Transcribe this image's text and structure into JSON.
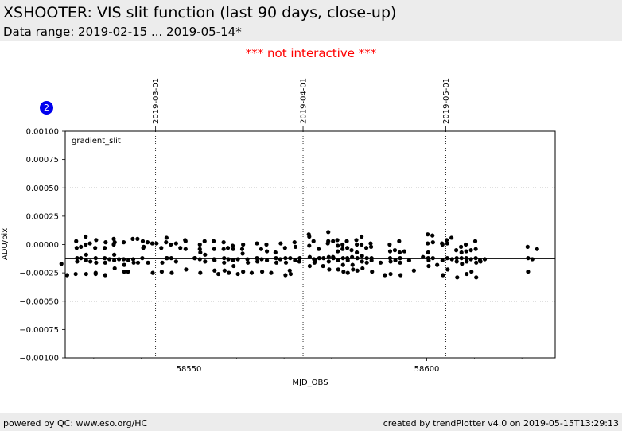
{
  "header": {
    "title": "XSHOOTER: VIS slit function (last 90 days, close-up)",
    "subtitle": "Data range: 2019-02-15 ... 2019-05-14*"
  },
  "notice": "*** not interactive ***",
  "badge": "2",
  "footer": {
    "left": "powered by QC: www.eso.org/HC",
    "right": "created by trendPlotter v4.0 on 2019-05-15T13:29:13"
  },
  "colors": {
    "header_bg": "#ececec",
    "notice": "#ff0000",
    "badge": "#0000ee",
    "points": "#000000"
  },
  "chart_data": {
    "type": "scatter",
    "xlabel": "MJD_OBS",
    "ylabel": "ADU/pix",
    "panel_label": "gradient_slit",
    "xlim": [
      58524,
      58627
    ],
    "ylim": [
      -0.001,
      0.001
    ],
    "x_ticks": [
      58550,
      58600
    ],
    "x_tick_labels": [
      "58550",
      "58600"
    ],
    "y_ticks": [
      -0.001,
      -0.00075,
      -0.0005,
      -0.00025,
      0,
      0.00025,
      0.0005,
      0.00075,
      0.001
    ],
    "y_tick_labels": [
      "−0.00100",
      "−0.00075",
      "−0.00050",
      "−0.00025",
      "0.00000",
      "0.00025",
      "0.00050",
      "0.00075",
      "0.00100"
    ],
    "reference_line": -0.000125,
    "dotted_hlines": [
      0.0005,
      -0.0005
    ],
    "month_markers": [
      {
        "label": "2019-03-01",
        "mjd": 58543
      },
      {
        "label": "2019-04-01",
        "mjd": 58574
      },
      {
        "label": "2019-05-01",
        "mjd": 58604
      }
    ],
    "points": [
      [
        58523.2,
        -0.00017
      ],
      [
        58524.4,
        -0.00027
      ],
      [
        58526.2,
        -0.00026
      ],
      [
        58526.3,
        3e-05
      ],
      [
        58526.4,
        -3e-05
      ],
      [
        58526.5,
        -0.00012
      ],
      [
        58526.5,
        -0.00015
      ],
      [
        58527.3,
        -2e-05
      ],
      [
        58527.3,
        -0.00012
      ],
      [
        58528.3,
        7e-05
      ],
      [
        58528.3,
        0.0
      ],
      [
        58528.4,
        -9e-05
      ],
      [
        58528.4,
        -0.00014
      ],
      [
        58528.4,
        -0.00026
      ],
      [
        58529.2,
        1e-05
      ],
      [
        58529.3,
        -0.00015
      ],
      [
        58530.3,
        -3e-05
      ],
      [
        58530.4,
        -0.00012
      ],
      [
        58530.4,
        -0.00025
      ],
      [
        58530.4,
        -0.00026
      ],
      [
        58530.5,
        4e-05
      ],
      [
        58530.5,
        -0.00016
      ],
      [
        58532.3,
        -3e-05
      ],
      [
        58532.3,
        -0.00012
      ],
      [
        58532.4,
        -0.00016
      ],
      [
        58532.4,
        -0.00027
      ],
      [
        58532.5,
        2e-05
      ],
      [
        58533.3,
        -0.00013
      ],
      [
        58534.2,
        5e-05
      ],
      [
        58534.2,
        0.0
      ],
      [
        58534.3,
        -9e-05
      ],
      [
        58534.3,
        -0.00014
      ],
      [
        58534.4,
        -0.00021
      ],
      [
        58534.4,
        2e-05
      ],
      [
        58535.3,
        -0.00013
      ],
      [
        58536.3,
        2e-05
      ],
      [
        58536.3,
        -0.00013
      ],
      [
        58536.4,
        -0.00024
      ],
      [
        58536.4,
        -0.00018
      ],
      [
        58537.2,
        -0.00024
      ],
      [
        58537.3,
        -0.00014
      ],
      [
        58538.2,
        5e-05
      ],
      [
        58538.3,
        -0.00013
      ],
      [
        58538.4,
        -0.00016
      ],
      [
        58539.2,
        5e-05
      ],
      [
        58539.3,
        -0.00016
      ],
      [
        58540.2,
        -0.00012
      ],
      [
        58540.3,
        3e-05
      ],
      [
        58540.4,
        -3e-05
      ],
      [
        58540.5,
        -2e-05
      ],
      [
        58541.3,
        2e-05
      ],
      [
        58541.4,
        -0.00016
      ],
      [
        58542.3,
        1e-05
      ],
      [
        58542.4,
        -0.00025
      ],
      [
        58543.2,
        1e-05
      ],
      [
        58544.2,
        -3e-05
      ],
      [
        58544.3,
        -0.00024
      ],
      [
        58544.4,
        -0.00016
      ],
      [
        58545.2,
        2e-05
      ],
      [
        58545.3,
        6e-05
      ],
      [
        58545.3,
        -0.00012
      ],
      [
        58545.4,
        -0.00012
      ],
      [
        58546.2,
        0.0
      ],
      [
        58546.3,
        -0.00012
      ],
      [
        58546.4,
        -0.00025
      ],
      [
        58547.3,
        -0.00015
      ],
      [
        58547.3,
        1e-05
      ],
      [
        58548.2,
        -3e-05
      ],
      [
        58549.2,
        4e-05
      ],
      [
        58549.3,
        3e-05
      ],
      [
        58549.3,
        -4e-05
      ],
      [
        58549.4,
        -0.00022
      ],
      [
        58551.2,
        -0.00012
      ],
      [
        58551.3,
        -0.00012
      ],
      [
        58552.3,
        0.0
      ],
      [
        58552.3,
        -4e-05
      ],
      [
        58552.4,
        -7e-05
      ],
      [
        58552.3,
        -0.00013
      ],
      [
        58552.4,
        -0.00025
      ],
      [
        58553.3,
        3e-05
      ],
      [
        58553.4,
        -9e-05
      ],
      [
        58553.4,
        -0.00015
      ],
      [
        58555.2,
        3e-05
      ],
      [
        58555.3,
        -4e-05
      ],
      [
        58555.3,
        -0.00013
      ],
      [
        58555.4,
        -0.00014
      ],
      [
        58555.4,
        -0.00023
      ],
      [
        58556.2,
        -0.00026
      ],
      [
        58557.3,
        2e-05
      ],
      [
        58557.3,
        -4e-05
      ],
      [
        58557.4,
        -0.00012
      ],
      [
        58557.4,
        -0.00016
      ],
      [
        58557.5,
        -0.00023
      ],
      [
        58558.2,
        -3e-05
      ],
      [
        58558.3,
        -0.00013
      ],
      [
        58558.4,
        -0.00025
      ],
      [
        58559.2,
        -1e-05
      ],
      [
        58559.3,
        -4e-05
      ],
      [
        58559.3,
        -0.00014
      ],
      [
        58559.4,
        -0.00019
      ],
      [
        58560.3,
        -0.00026
      ],
      [
        58560.3,
        -0.00013
      ],
      [
        58561.2,
        -4e-05
      ],
      [
        58561.3,
        -8e-05
      ],
      [
        58561.4,
        -0.00024
      ],
      [
        58561.4,
        0.0
      ],
      [
        58562.3,
        -0.00013
      ],
      [
        58562.4,
        -0.00016
      ],
      [
        58563.2,
        -0.00025
      ],
      [
        58564.3,
        1e-05
      ],
      [
        58564.3,
        -0.00012
      ],
      [
        58564.4,
        -0.00015
      ],
      [
        58565.2,
        -4e-05
      ],
      [
        58565.3,
        -0.00013
      ],
      [
        58565.4,
        -0.00024
      ],
      [
        58566.3,
        0.0
      ],
      [
        58566.4,
        -6e-05
      ],
      [
        58566.4,
        -0.00014
      ],
      [
        58567.3,
        -0.00025
      ],
      [
        58568.2,
        -7e-05
      ],
      [
        58568.3,
        -0.00012
      ],
      [
        58568.4,
        -0.00016
      ],
      [
        58569.2,
        -0.00013
      ],
      [
        58569.3,
        1e-05
      ],
      [
        58570.2,
        -3e-05
      ],
      [
        58570.3,
        -0.00012
      ],
      [
        58570.4,
        -0.00016
      ],
      [
        58570.3,
        -0.00027
      ],
      [
        58571.2,
        -0.00023
      ],
      [
        58571.3,
        -0.00012
      ],
      [
        58571.4,
        -0.00026
      ],
      [
        58572.2,
        2e-05
      ],
      [
        58572.3,
        -0.00014
      ],
      [
        58572.4,
        -2e-05
      ],
      [
        58573.2,
        -0.00015
      ],
      [
        58573.3,
        -0.00012
      ],
      [
        58575.2,
        9e-05
      ],
      [
        58575.3,
        7e-05
      ],
      [
        58575.3,
        -1e-05
      ],
      [
        58575.4,
        -0.00011
      ],
      [
        58575.4,
        -0.00019
      ],
      [
        58576.2,
        3e-05
      ],
      [
        58576.3,
        -0.00013
      ],
      [
        58576.4,
        -0.00016
      ],
      [
        58576.5,
        -0.00014
      ],
      [
        58577.3,
        -4e-05
      ],
      [
        58577.4,
        -0.00012
      ],
      [
        58578.2,
        -0.00019
      ],
      [
        58578.3,
        -0.00012
      ],
      [
        58579.2,
        1e-05
      ],
      [
        58579.3,
        0.00011
      ],
      [
        58579.3,
        3e-05
      ],
      [
        58579.4,
        -0.00011
      ],
      [
        58579.4,
        -0.00015
      ],
      [
        58579.5,
        -0.00022
      ],
      [
        58580.3,
        3e-05
      ],
      [
        58580.3,
        -0.00011
      ],
      [
        58580.4,
        -0.00012
      ],
      [
        58581.2,
        4e-05
      ],
      [
        58581.3,
        -1e-05
      ],
      [
        58581.3,
        -6e-05
      ],
      [
        58581.4,
        -0.00014
      ],
      [
        58581.4,
        -0.00022
      ],
      [
        58582.3,
        0.0
      ],
      [
        58582.3,
        -4e-05
      ],
      [
        58582.4,
        -0.00012
      ],
      [
        58582.4,
        -0.00018
      ],
      [
        58582.5,
        -0.00024
      ],
      [
        58583.2,
        3e-05
      ],
      [
        58583.3,
        -3e-05
      ],
      [
        58583.3,
        -0.00012
      ],
      [
        58583.4,
        -0.00014
      ],
      [
        58583.4,
        -0.00025
      ],
      [
        58584.2,
        -5e-05
      ],
      [
        58584.3,
        -0.00011
      ],
      [
        58584.4,
        -0.00018
      ],
      [
        58584.5,
        -0.00022
      ],
      [
        58585.2,
        4e-05
      ],
      [
        58585.3,
        0.0
      ],
      [
        58585.3,
        -7e-05
      ],
      [
        58585.4,
        -0.00012
      ],
      [
        58585.4,
        -0.00023
      ],
      [
        58586.3,
        7e-05
      ],
      [
        58586.3,
        0.0
      ],
      [
        58586.4,
        -0.0001
      ],
      [
        58586.4,
        -0.00015
      ],
      [
        58586.5,
        -0.00021
      ],
      [
        58587.3,
        -3e-05
      ],
      [
        58587.4,
        -0.00012
      ],
      [
        58587.4,
        -0.00016
      ],
      [
        58588.2,
        1e-05
      ],
      [
        58588.3,
        -2e-05
      ],
      [
        58588.4,
        -0.00012
      ],
      [
        58588.4,
        -0.00014
      ],
      [
        58588.5,
        -0.00024
      ],
      [
        58590.3,
        -0.00016
      ],
      [
        58591.2,
        -0.00027
      ],
      [
        58592.2,
        0.0
      ],
      [
        58592.3,
        -6e-05
      ],
      [
        58592.3,
        -0.00012
      ],
      [
        58592.4,
        -0.00015
      ],
      [
        58592.4,
        -0.00026
      ],
      [
        58593.3,
        -5e-05
      ],
      [
        58593.4,
        -0.00014
      ],
      [
        58594.2,
        3e-05
      ],
      [
        58594.3,
        -7e-05
      ],
      [
        58594.4,
        -0.00012
      ],
      [
        58594.4,
        -0.00016
      ],
      [
        58594.5,
        -0.00027
      ],
      [
        58595.3,
        -6e-05
      ],
      [
        58596.3,
        -0.00014
      ],
      [
        58597.3,
        -0.00023
      ],
      [
        58599.2,
        -0.00011
      ],
      [
        58600.2,
        9e-05
      ],
      [
        58600.2,
        1e-05
      ],
      [
        58600.3,
        -7e-05
      ],
      [
        58600.3,
        -0.00012
      ],
      [
        58600.4,
        -0.00014
      ],
      [
        58600.4,
        -0.00019
      ],
      [
        58601.2,
        8e-05
      ],
      [
        58601.3,
        2e-05
      ],
      [
        58601.3,
        -0.00012
      ],
      [
        58602.2,
        -0.00018
      ],
      [
        58603.2,
        1e-05
      ],
      [
        58603.3,
        0.0
      ],
      [
        58603.3,
        -0.00014
      ],
      [
        58603.4,
        -0.00027
      ],
      [
        58604.2,
        4e-05
      ],
      [
        58604.3,
        1e-05
      ],
      [
        58604.3,
        -0.00012
      ],
      [
        58604.4,
        -0.00022
      ],
      [
        58605.2,
        6e-05
      ],
      [
        58605.3,
        -0.00013
      ],
      [
        58606.2,
        -5e-05
      ],
      [
        58606.3,
        -0.00012
      ],
      [
        58606.3,
        -0.00015
      ],
      [
        58606.4,
        -0.00029
      ],
      [
        58607.2,
        -2e-05
      ],
      [
        58607.3,
        -7e-05
      ],
      [
        58607.3,
        -0.00012
      ],
      [
        58607.4,
        -0.00017
      ],
      [
        58608.2,
        0.0
      ],
      [
        58608.3,
        -6e-05
      ],
      [
        58608.3,
        -0.00012
      ],
      [
        58608.4,
        -0.00015
      ],
      [
        58608.4,
        -0.00026
      ],
      [
        58609.3,
        -5e-05
      ],
      [
        58609.3,
        -0.00013
      ],
      [
        58609.4,
        -0.00024
      ],
      [
        58610.2,
        3e-05
      ],
      [
        58610.3,
        -4e-05
      ],
      [
        58610.3,
        -0.00012
      ],
      [
        58610.4,
        -0.00016
      ],
      [
        58610.4,
        -0.00029
      ],
      [
        58611.2,
        -0.00014
      ],
      [
        58611.3,
        -0.00015
      ],
      [
        58612.2,
        -0.00013
      ],
      [
        58621.2,
        -2e-05
      ],
      [
        58621.3,
        -0.00012
      ],
      [
        58621.3,
        -0.00024
      ],
      [
        58622.2,
        -0.00013
      ],
      [
        58623.2,
        -4e-05
      ]
    ]
  }
}
